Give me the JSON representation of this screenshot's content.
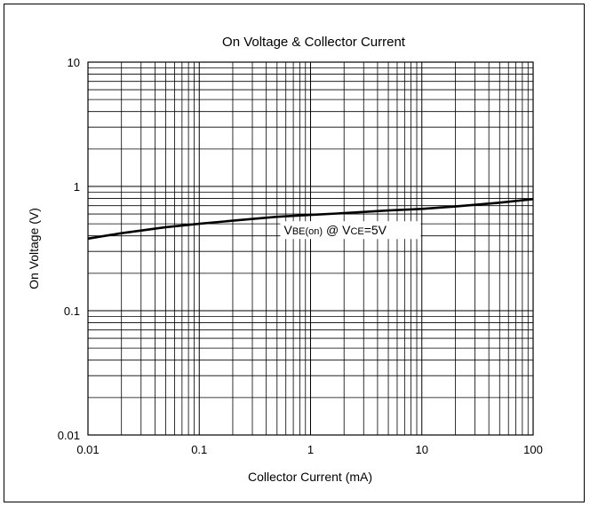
{
  "chart_data": {
    "type": "line",
    "title": "On Voltage & Collector Current",
    "xlabel": "Collector Current (mA)",
    "ylabel": "On Voltage (V)",
    "x_scale": "log",
    "y_scale": "log",
    "xlim": [
      0.01,
      100
    ],
    "ylim": [
      0.01,
      10
    ],
    "grid": true,
    "x_ticks": [
      "0.01",
      "0.1",
      "1",
      "10",
      "100"
    ],
    "y_ticks": [
      "0.01",
      "0.1",
      "1",
      "10"
    ],
    "annotation": {
      "parts": [
        {
          "text": "V",
          "sub": false
        },
        {
          "text": "BE(on)",
          "sub": true
        },
        {
          "text": " @ V",
          "sub": false
        },
        {
          "text": "CE",
          "sub": true
        },
        {
          "text": "=5V",
          "sub": false
        }
      ]
    },
    "series": [
      {
        "x": [
          0.01,
          0.02,
          0.05,
          0.1,
          0.2,
          0.5,
          1,
          2,
          5,
          10,
          20,
          50,
          100
        ],
        "y": [
          0.38,
          0.42,
          0.47,
          0.5,
          0.53,
          0.57,
          0.59,
          0.61,
          0.64,
          0.66,
          0.69,
          0.74,
          0.79
        ]
      }
    ]
  }
}
